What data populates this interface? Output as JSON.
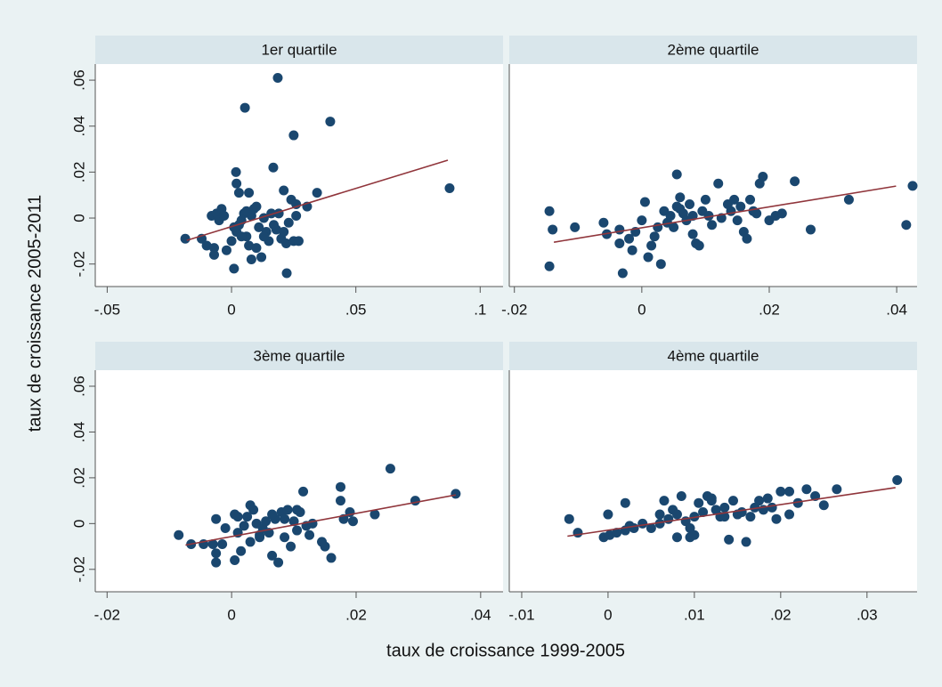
{
  "xlabel": "taux de croissance 1999-2005",
  "ylabel": "taux de croissance 2005-2011",
  "chart_data": [
    {
      "type": "scatter",
      "title": "1er quartile",
      "points": {
        "color": "#1a476f",
        "x": [
          0.0186,
          0.0054,
          0.0397,
          0.025,
          0.0168,
          0.0018,
          0.0877,
          0.0344,
          0.0304,
          -0.0186,
          0.0222,
          0.001,
          0.002,
          0.003,
          0.007,
          0.021,
          0.024,
          0.026,
          -0.008,
          -0.006,
          -0.004,
          -0.005,
          -0.003,
          -0.012,
          -0.01,
          -0.007,
          -0.007,
          -0.002,
          0.0,
          0.002,
          0.003,
          0.004,
          0.005,
          0.006,
          0.007,
          0.008,
          0.009,
          0.01,
          0.011,
          0.012,
          0.013,
          0.014,
          0.015,
          0.016,
          0.017,
          0.018,
          0.019,
          0.02,
          0.021,
          0.022,
          0.023,
          0.025,
          0.026,
          0.027,
          0.008,
          0.004,
          0.001,
          0.01,
          0.006,
          0.013
        ],
        "y": [
          0.061,
          0.048,
          0.042,
          0.036,
          0.022,
          0.02,
          0.013,
          0.011,
          0.005,
          -0.009,
          -0.024,
          -0.022,
          0.015,
          0.011,
          0.011,
          0.012,
          0.008,
          0.006,
          0.001,
          0.002,
          0.004,
          -0.001,
          0.001,
          -0.009,
          -0.012,
          -0.013,
          -0.016,
          -0.014,
          -0.01,
          -0.006,
          -0.003,
          -0.001,
          0.002,
          -0.008,
          -0.012,
          0.001,
          0.004,
          0.005,
          -0.004,
          -0.017,
          0.0,
          -0.006,
          -0.01,
          0.002,
          -0.003,
          -0.005,
          0.002,
          -0.009,
          -0.006,
          -0.011,
          -0.002,
          -0.01,
          0.001,
          -0.01,
          -0.018,
          -0.008,
          -0.004,
          -0.013,
          0.003,
          -0.008
        ]
      },
      "fit": {
        "color": "#90353b",
        "x": [
          -0.018,
          0.087
        ],
        "y": [
          -0.0097,
          0.0252
        ]
      },
      "xlim": [
        -0.0548,
        0.1092
      ],
      "ylim": [
        -0.0298,
        0.067
      ],
      "xticks": [
        {
          "value": -0.05,
          "label": "-.05"
        },
        0,
        {
          "value": 0.05,
          "label": ".05"
        },
        {
          "value": 0.1,
          "label": ".1"
        }
      ],
      "yticks": [
        {
          "value": -0.02,
          "label": "-.02"
        },
        0,
        {
          "value": 0.02,
          "label": ".02"
        },
        {
          "value": 0.04,
          "label": ".04"
        },
        {
          "value": 0.06,
          "label": ".06"
        }
      ]
    },
    {
      "type": "scatter",
      "title": "2ème quartile",
      "points": {
        "color": "#1a476f",
        "x": [
          -0.0145,
          -0.0145,
          -0.014,
          -0.0105,
          -0.006,
          -0.0055,
          -0.0035,
          -0.0035,
          -0.003,
          -0.002,
          -0.0015,
          -0.001,
          0.0,
          0.0005,
          0.001,
          0.0015,
          0.002,
          0.0025,
          0.003,
          0.0035,
          0.004,
          0.0045,
          0.005,
          0.0055,
          0.006,
          0.0055,
          0.0065,
          0.007,
          0.0075,
          0.008,
          0.0085,
          0.009,
          0.0095,
          0.01,
          0.0105,
          0.011,
          0.012,
          0.0125,
          0.0135,
          0.014,
          0.0145,
          0.015,
          0.0155,
          0.016,
          0.0165,
          0.017,
          0.0175,
          0.018,
          0.019,
          0.0185,
          0.02,
          0.021,
          0.022,
          0.024,
          0.0265,
          0.0325,
          0.0415,
          0.0425,
          0.006,
          0.008
        ],
        "y": [
          0.003,
          -0.021,
          -0.005,
          -0.004,
          -0.002,
          -0.007,
          -0.005,
          -0.011,
          -0.024,
          -0.009,
          -0.014,
          -0.006,
          -0.001,
          0.007,
          -0.017,
          -0.012,
          -0.008,
          -0.004,
          -0.02,
          0.003,
          -0.002,
          0.001,
          -0.004,
          0.019,
          0.009,
          0.005,
          0.002,
          -0.001,
          0.006,
          -0.007,
          -0.011,
          -0.012,
          0.003,
          0.008,
          0.001,
          -0.003,
          0.015,
          0.0,
          0.006,
          0.003,
          0.008,
          -0.001,
          0.005,
          -0.006,
          -0.009,
          0.008,
          0.003,
          0.002,
          0.018,
          0.015,
          -0.001,
          0.001,
          0.002,
          0.016,
          -0.005,
          0.008,
          -0.003,
          0.014,
          0.004,
          0.001
        ]
      },
      "fit": {
        "color": "#90353b",
        "x": [
          -0.0138,
          0.0399
        ],
        "y": [
          -0.0105,
          0.0139
        ]
      },
      "xlim": [
        -0.0208,
        0.0432
      ],
      "ylim": [
        -0.0298,
        0.067
      ],
      "xticks": [
        {
          "value": -0.02,
          "label": "-.02"
        },
        0,
        {
          "value": 0.02,
          "label": ".02"
        },
        {
          "value": 0.04,
          "label": ".04"
        }
      ]
    },
    {
      "type": "scatter",
      "title": "3ème quartile",
      "points": {
        "color": "#1a476f",
        "x": [
          -0.0085,
          -0.0065,
          -0.0045,
          -0.003,
          -0.0025,
          -0.0025,
          -0.0025,
          -0.0015,
          -0.001,
          0.0005,
          0.0005,
          0.001,
          0.0015,
          0.002,
          0.0025,
          0.003,
          0.003,
          0.0035,
          0.004,
          0.0045,
          0.005,
          0.0055,
          0.006,
          0.0065,
          0.007,
          0.0075,
          0.008,
          0.0085,
          0.009,
          0.0095,
          0.01,
          0.0105,
          0.011,
          0.0115,
          0.012,
          0.0125,
          0.013,
          0.0145,
          0.015,
          0.016,
          0.0175,
          0.0175,
          0.018,
          0.019,
          0.0195,
          0.023,
          0.0255,
          0.0295,
          0.036,
          0.0085,
          0.0065,
          0.0105,
          0.001,
          0.0045
        ],
        "y": [
          -0.005,
          -0.009,
          -0.009,
          -0.009,
          0.002,
          -0.013,
          -0.017,
          -0.009,
          -0.002,
          0.004,
          -0.016,
          -0.004,
          -0.012,
          -0.001,
          0.003,
          0.008,
          -0.008,
          0.006,
          0.0,
          -0.005,
          -0.002,
          0.001,
          -0.004,
          -0.014,
          0.002,
          -0.017,
          0.005,
          -0.006,
          0.006,
          -0.01,
          0.001,
          -0.003,
          0.005,
          0.014,
          -0.001,
          -0.005,
          0.0,
          -0.008,
          -0.01,
          -0.015,
          0.01,
          0.016,
          0.002,
          0.005,
          0.001,
          0.004,
          0.024,
          0.01,
          0.013,
          0.002,
          0.004,
          0.006,
          0.003,
          -0.006
        ]
      },
      "fit": {
        "color": "#90353b",
        "x": [
          -0.0074,
          0.036
        ],
        "y": [
          -0.0094,
          0.0125
        ]
      },
      "xlim": [
        -0.0219,
        0.0436
      ],
      "ylim": [
        -0.0298,
        0.067
      ],
      "xticks": [
        {
          "value": -0.02,
          "label": "-.02"
        },
        0,
        {
          "value": 0.02,
          "label": ".02"
        },
        {
          "value": 0.04,
          "label": ".04"
        }
      ],
      "yticks": [
        {
          "value": -0.02,
          "label": "-.02"
        },
        0,
        {
          "value": 0.02,
          "label": ".02"
        },
        {
          "value": 0.04,
          "label": ".04"
        },
        {
          "value": 0.06,
          "label": ".06"
        }
      ]
    },
    {
      "type": "scatter",
      "title": "4ème quartile",
      "points": {
        "color": "#1a476f",
        "x": [
          -0.0045,
          -0.0035,
          -0.0005,
          0.0,
          0.0002,
          0.001,
          0.002,
          0.0025,
          0.002,
          0.003,
          0.004,
          0.005,
          0.006,
          0.006,
          0.0065,
          0.007,
          0.0075,
          0.008,
          0.008,
          0.0085,
          0.009,
          0.0095,
          0.01,
          0.0095,
          0.01,
          0.0105,
          0.011,
          0.0115,
          0.012,
          0.0125,
          0.013,
          0.0135,
          0.014,
          0.0145,
          0.015,
          0.0155,
          0.016,
          0.0165,
          0.017,
          0.0175,
          0.018,
          0.0185,
          0.019,
          0.0195,
          0.02,
          0.021,
          0.021,
          0.022,
          0.023,
          0.024,
          0.025,
          0.0265,
          0.0335,
          0.012,
          0.0135
        ],
        "y": [
          0.002,
          -0.004,
          -0.006,
          0.004,
          -0.005,
          -0.004,
          -0.003,
          -0.001,
          0.009,
          -0.002,
          0.0,
          -0.002,
          0.004,
          0.0,
          0.01,
          0.002,
          0.006,
          0.004,
          -0.006,
          0.012,
          0.001,
          -0.002,
          0.003,
          -0.006,
          -0.005,
          0.009,
          0.005,
          0.012,
          0.01,
          0.006,
          0.003,
          0.007,
          -0.007,
          0.01,
          0.004,
          0.005,
          -0.008,
          0.003,
          0.007,
          0.01,
          0.006,
          0.011,
          0.007,
          0.002,
          0.014,
          0.014,
          0.004,
          0.009,
          0.015,
          0.012,
          0.008,
          0.015,
          0.019,
          0.011,
          0.003
        ]
      },
      "fit": {
        "color": "#90353b",
        "x": [
          -0.0047,
          0.0333
        ],
        "y": [
          -0.0055,
          0.0157
        ]
      },
      "xlim": [
        -0.01144,
        0.0358
      ],
      "ylim": [
        -0.0298,
        0.067
      ],
      "xticks": [
        {
          "value": -0.01,
          "label": "-.01"
        },
        0,
        {
          "value": 0.01,
          "label": ".01"
        },
        {
          "value": 0.02,
          "label": ".02"
        },
        {
          "value": 0.03,
          "label": ".03"
        }
      ]
    }
  ]
}
